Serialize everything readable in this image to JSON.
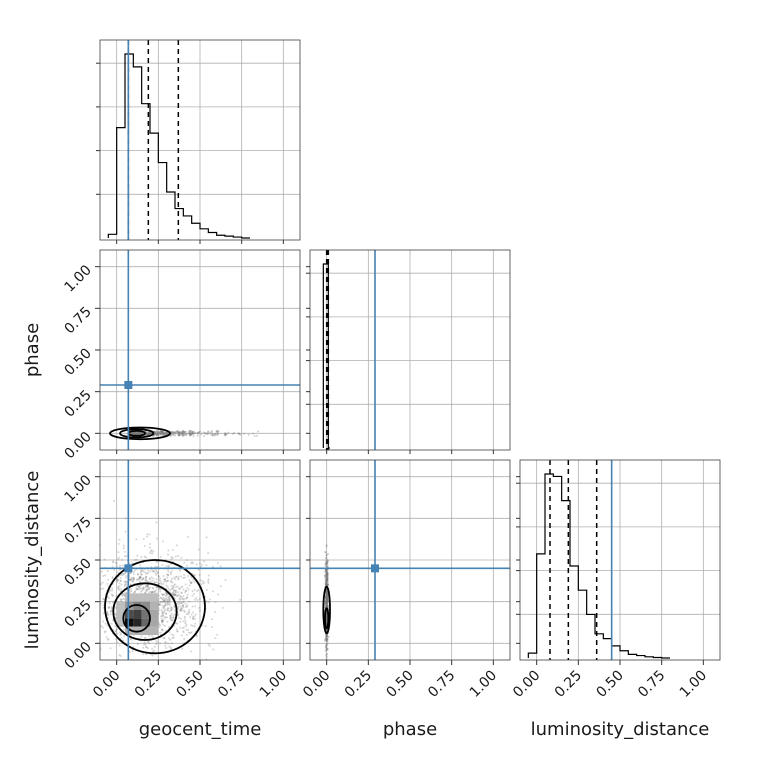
{
  "chart_data": {
    "type": "corner",
    "parameters": [
      "geocent_time",
      "phase",
      "luminosity_distance"
    ],
    "axis_range": [
      -0.1,
      1.1
    ],
    "tick_labels": [
      "0.00",
      "0.25",
      "0.50",
      "0.75",
      "1.00"
    ],
    "grid": true,
    "truth": {
      "geocent_time": 0.07,
      "phase": 0.29,
      "luminosity_distance": 0.45,
      "color": "#4682b4"
    },
    "quantile_lines": {
      "geocent_time": [
        0.07,
        0.19,
        0.37
      ],
      "phase": [
        0.0,
        0.005,
        0.01
      ],
      "luminosity_distance": [
        0.08,
        0.19,
        0.36
      ]
    },
    "histograms": {
      "geocent_time": {
        "bin_edges": [
          -0.05,
          0.0,
          0.05,
          0.1,
          0.15,
          0.2,
          0.25,
          0.3,
          0.35,
          0.4,
          0.45,
          0.5,
          0.55,
          0.6,
          0.65,
          0.7,
          0.75,
          0.8
        ],
        "counts": [
          0.02,
          0.6,
          1.0,
          0.93,
          0.73,
          0.57,
          0.41,
          0.25,
          0.16,
          0.12,
          0.08,
          0.05,
          0.03,
          0.015,
          0.01,
          0.005,
          0.0
        ]
      },
      "phase": {
        "bin_edges": [
          -0.02,
          0.0,
          0.01,
          0.02
        ],
        "counts": [
          1.0,
          1.0,
          0.0
        ]
      },
      "luminosity_distance": {
        "bin_edges": [
          -0.05,
          0.0,
          0.05,
          0.1,
          0.15,
          0.2,
          0.25,
          0.3,
          0.35,
          0.4,
          0.45,
          0.5,
          0.55,
          0.6,
          0.65,
          0.7,
          0.75,
          0.8
        ],
        "counts": [
          0.02,
          0.43,
          0.76,
          0.75,
          0.65,
          0.38,
          0.28,
          0.18,
          0.1,
          0.08,
          0.05,
          0.03,
          0.015,
          0.01,
          0.005,
          0.002,
          0.0
        ]
      }
    },
    "contours": {
      "phase_vs_geocent_time": [
        {
          "cx": 0.12,
          "cy": 0.0,
          "rx": 0.05,
          "ry": 0.015
        },
        {
          "cx": 0.12,
          "cy": 0.0,
          "rx": 0.1,
          "ry": 0.025
        },
        {
          "cx": 0.14,
          "cy": 0.0,
          "rx": 0.18,
          "ry": 0.035
        }
      ],
      "luminosity_distance_vs_geocent_time": [
        {
          "cx": 0.12,
          "cy": 0.15,
          "rx": 0.08,
          "ry": 0.08
        },
        {
          "cx": 0.17,
          "cy": 0.19,
          "rx": 0.19,
          "ry": 0.17
        },
        {
          "cx": 0.23,
          "cy": 0.22,
          "rx": 0.3,
          "ry": 0.28
        }
      ],
      "luminosity_distance_vs_phase": [
        {
          "cx": 0.0,
          "cy": 0.15,
          "rx": 0.01,
          "ry": 0.06
        },
        {
          "cx": 0.0,
          "cy": 0.2,
          "rx": 0.02,
          "ry": 0.14
        }
      ]
    },
    "density_blocks": [
      {
        "x0": 0.05,
        "x1": 0.1,
        "y0": 0.1,
        "y1": 0.15,
        "shade": 0.95
      },
      {
        "x0": 0.1,
        "x1": 0.15,
        "y0": 0.1,
        "y1": 0.15,
        "shade": 0.85
      },
      {
        "x0": 0.05,
        "x1": 0.1,
        "y0": 0.15,
        "y1": 0.2,
        "shade": 0.7
      },
      {
        "x0": 0.1,
        "x1": 0.15,
        "y0": 0.15,
        "y1": 0.2,
        "shade": 0.75
      },
      {
        "x0": 0.15,
        "x1": 0.2,
        "y0": 0.1,
        "y1": 0.15,
        "shade": 0.6
      },
      {
        "x0": 0.15,
        "x1": 0.2,
        "y0": 0.15,
        "y1": 0.2,
        "shade": 0.55
      },
      {
        "x0": 0.1,
        "x1": 0.15,
        "y0": 0.2,
        "y1": 0.25,
        "shade": 0.5
      },
      {
        "x0": 0.15,
        "x1": 0.2,
        "y0": 0.2,
        "y1": 0.25,
        "shade": 0.45
      },
      {
        "x0": 0.05,
        "x1": 0.1,
        "y0": 0.2,
        "y1": 0.25,
        "shade": 0.4
      },
      {
        "x0": 0.2,
        "x1": 0.25,
        "y0": 0.1,
        "y1": 0.15,
        "shade": 0.35
      },
      {
        "x0": 0.2,
        "x1": 0.25,
        "y0": 0.15,
        "y1": 0.2,
        "shade": 0.35
      },
      {
        "x0": 0.2,
        "x1": 0.25,
        "y0": 0.2,
        "y1": 0.25,
        "shade": 0.3
      },
      {
        "x0": 0.0,
        "x1": 0.05,
        "y0": 0.1,
        "y1": 0.25,
        "shade": 0.25
      },
      {
        "x0": 0.05,
        "x1": 0.25,
        "y0": 0.05,
        "y1": 0.1,
        "shade": 0.3
      },
      {
        "x0": 0.05,
        "x1": 0.25,
        "y0": 0.25,
        "y1": 0.3,
        "shade": 0.25
      }
    ]
  }
}
